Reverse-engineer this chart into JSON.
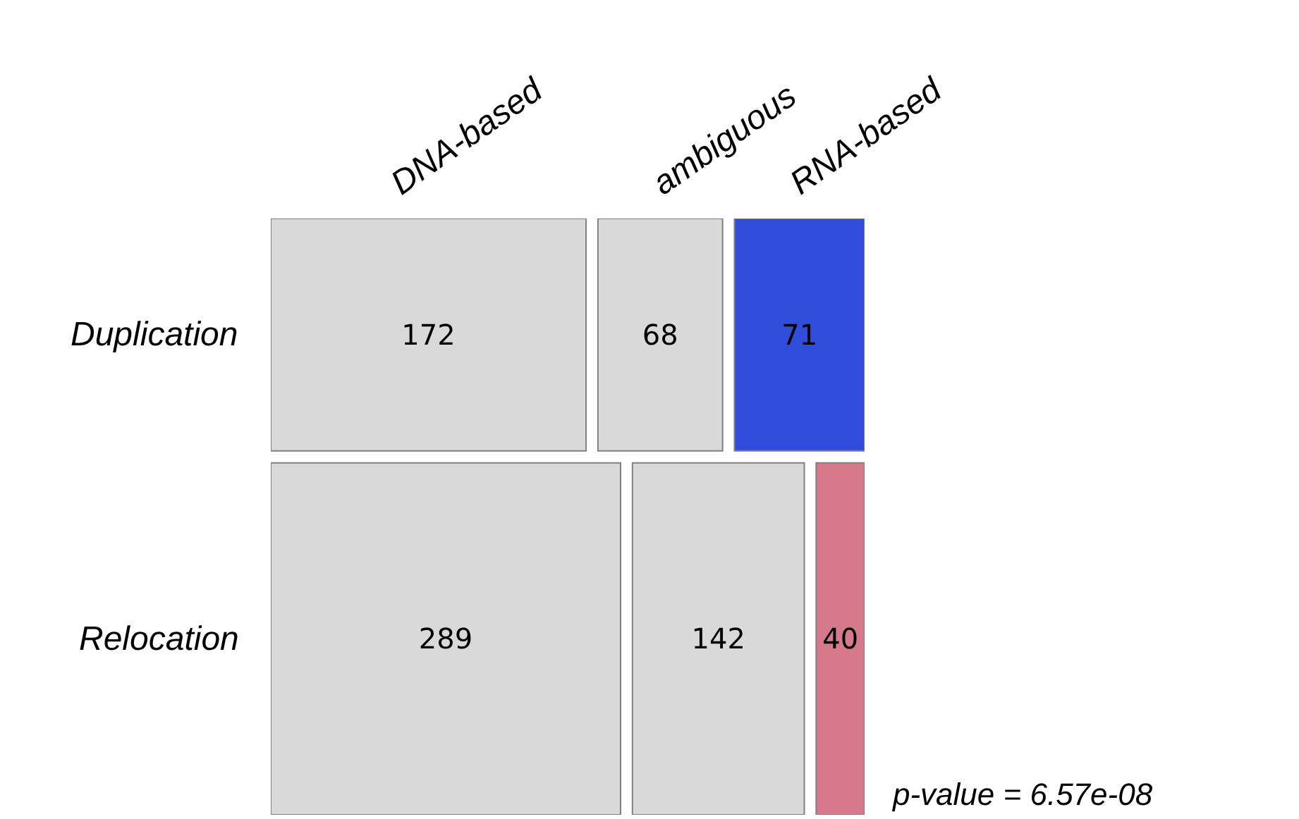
{
  "chart_data": {
    "type": "other",
    "categories": [
      "DNA-based",
      "ambiguous",
      "RNA-based"
    ],
    "series": [
      {
        "name": "Duplication",
        "values": [
          172,
          68,
          71
        ],
        "colors": [
          "#d9d9d9",
          "#d9d9d9",
          "#2f4cdb"
        ]
      },
      {
        "name": "Relocation",
        "values": [
          289,
          142,
          40
        ],
        "colors": [
          "#d9d9d9",
          "#d9d9d9",
          "#d6798b"
        ]
      }
    ],
    "data_labels": true,
    "annotations": [
      "p-value = 6.57e-08"
    ]
  }
}
